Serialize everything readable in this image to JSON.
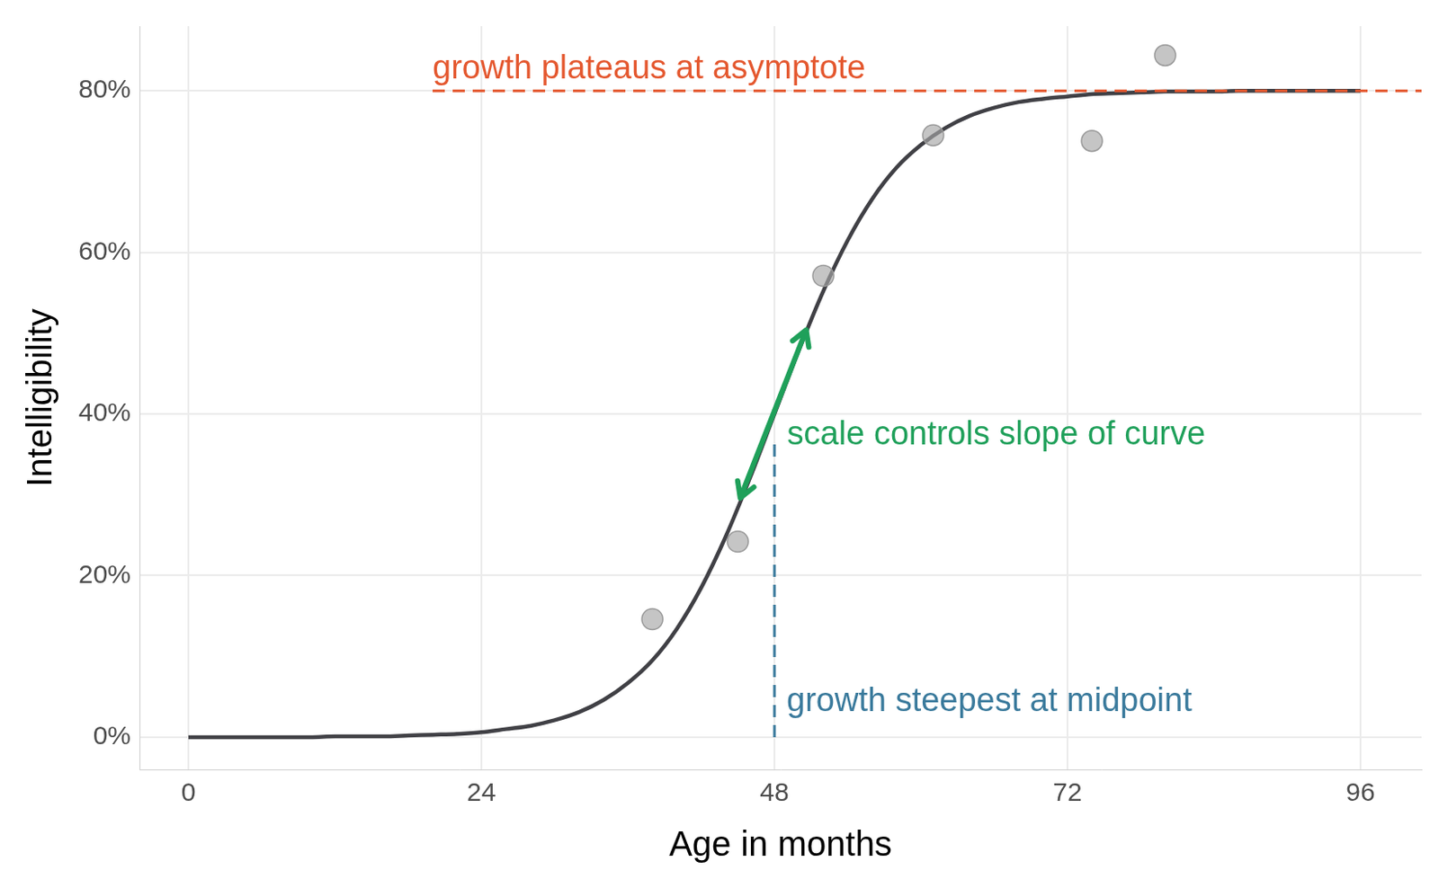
{
  "chart_data": {
    "type": "line",
    "x_label": "Age in months",
    "y_label": "Intelligibility",
    "xlim": [
      -4,
      101
    ],
    "xticks": [
      0,
      24,
      48,
      72,
      96
    ],
    "ylim": [
      -4,
      88
    ],
    "yticks": [
      {
        "value": 0,
        "label": "0%"
      },
      {
        "value": 20,
        "label": "20%"
      },
      {
        "value": 40,
        "label": "40%"
      },
      {
        "value": 60,
        "label": "60%"
      },
      {
        "value": 80,
        "label": "80%"
      }
    ],
    "grid": true,
    "series": [
      {
        "type": "line",
        "color": "#404045",
        "marker": "none",
        "line_style": "solid",
        "x": [
          0,
          2,
          4,
          6,
          8,
          10,
          12,
          14,
          16,
          18,
          20,
          22,
          24,
          26,
          28,
          30,
          32,
          34,
          36,
          38,
          40,
          42,
          44,
          46,
          48,
          50,
          52,
          54,
          56,
          58,
          60,
          62,
          64,
          66,
          68,
          70,
          72,
          74,
          76,
          78,
          80,
          82,
          84,
          86,
          88,
          90,
          92,
          94,
          96
        ],
        "values": [
          0,
          0,
          0,
          0,
          0,
          0,
          0.1,
          0.1,
          0.1,
          0.2,
          0.3,
          0.4,
          0.6,
          1.0,
          1.4,
          2.1,
          3.1,
          4.6,
          6.7,
          9.5,
          13.4,
          18.5,
          24.8,
          32.1,
          40,
          47.9,
          55.2,
          61.5,
          66.6,
          70.5,
          73.3,
          75.4,
          76.9,
          77.9,
          78.6,
          79.0,
          79.3,
          79.6,
          79.7,
          79.8,
          79.9,
          79.9,
          79.9,
          80,
          80,
          80,
          80,
          80,
          80
        ]
      },
      {
        "type": "scatter",
        "color": "#a6a6a6",
        "marker": "circle",
        "x": [
          38,
          45,
          52,
          61,
          74,
          80
        ],
        "values": [
          14.6,
          24.2,
          57.1,
          74.5,
          73.8,
          84.4
        ]
      }
    ],
    "annotations": [
      {
        "label": "growth plateaus at asymptote",
        "x": [
          20,
          101
        ],
        "y": 80,
        "color": "#e4572e",
        "line_style": "dashed"
      },
      {
        "label": "scale controls slope of curve",
        "x": [
          45.2,
          50.6
        ],
        "y": [
          29.6,
          50.4
        ],
        "color": "#1fa05a",
        "line_style": "solid",
        "marker": "arrow"
      },
      {
        "label": "growth steepest at midpoint",
        "x": 48,
        "y": [
          0,
          37
        ],
        "color": "#3a7a9c",
        "line_style": "dashed"
      }
    ]
  }
}
